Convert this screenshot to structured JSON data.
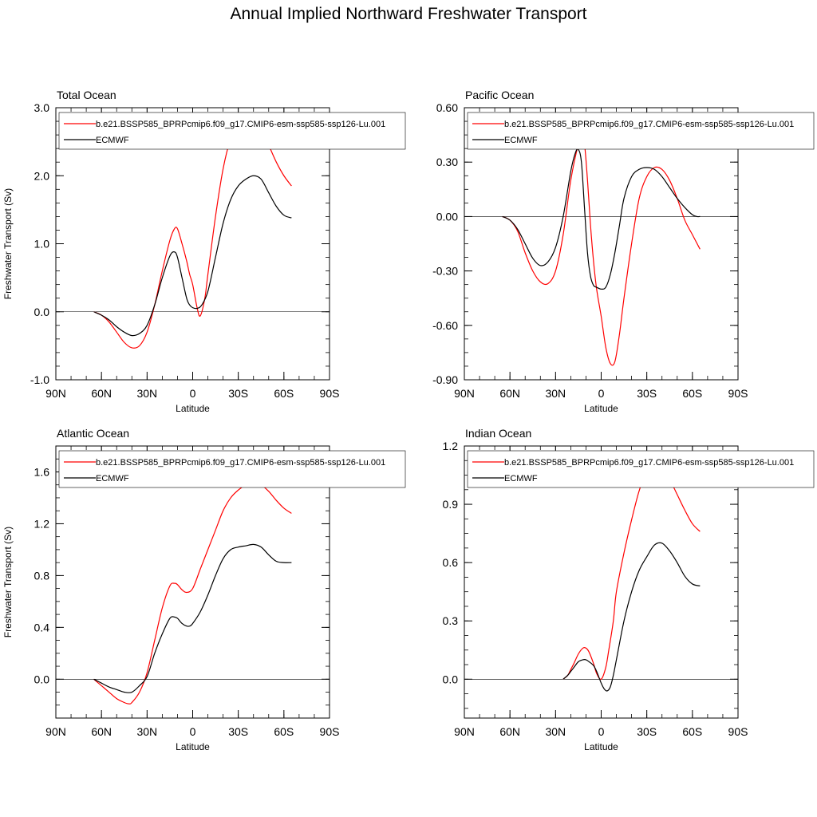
{
  "title": "Annual Implied Northward Freshwater Transport",
  "colors": {
    "model": "#ff0000",
    "obs": "#000000"
  },
  "chart_data": [
    {
      "type": "line",
      "title": "Total Ocean",
      "xlabel": "Latitude",
      "ylabel": "Freshwater Transport (Sv)",
      "xlim": [
        90,
        -90
      ],
      "ylim": [
        -1.0,
        3.0
      ],
      "xticks": [
        90,
        60,
        30,
        0,
        -30,
        -60,
        -90
      ],
      "xtick_labels": [
        "90N",
        "60N",
        "30N",
        "0",
        "30S",
        "60S",
        "90S"
      ],
      "yticks": [
        -1.0,
        0.0,
        1.0,
        2.0,
        3.0
      ],
      "ytick_labels": [
        "-1.0",
        "0.0",
        "1.0",
        "2.0",
        "3.0"
      ],
      "yminor": 0.2,
      "legend_position": "top",
      "series": [
        {
          "name": "b.e21.BSSP585_BPRPcmip6.f09_g17.CMIP6-esm-ssp585-ssp126-Lu.001",
          "color": "#ff0000",
          "x": [
            65,
            60,
            55,
            50,
            45,
            40,
            35,
            30,
            25,
            20,
            15,
            12,
            10,
            7,
            4,
            2,
            0,
            -3,
            -5,
            -8,
            -10,
            -15,
            -20,
            -25,
            -30,
            -35,
            -40,
            -45,
            -50,
            -55,
            -60,
            -65
          ],
          "y": [
            0.0,
            -0.05,
            -0.15,
            -0.3,
            -0.45,
            -0.53,
            -0.5,
            -0.3,
            0.1,
            0.6,
            1.05,
            1.22,
            1.22,
            1.0,
            0.75,
            0.55,
            0.4,
            0.05,
            -0.06,
            0.2,
            0.55,
            1.4,
            2.1,
            2.55,
            2.8,
            2.9,
            2.85,
            2.7,
            2.45,
            2.2,
            2.0,
            1.85
          ]
        },
        {
          "name": "ECMWF",
          "color": "#000000",
          "x": [
            65,
            60,
            55,
            50,
            45,
            40,
            35,
            30,
            25,
            20,
            15,
            12,
            10,
            7,
            4,
            2,
            0,
            -3,
            -6,
            -10,
            -15,
            -20,
            -25,
            -30,
            -35,
            -40,
            -45,
            -50,
            -55,
            -60,
            -65
          ],
          "y": [
            0.0,
            -0.05,
            -0.12,
            -0.22,
            -0.3,
            -0.35,
            -0.32,
            -0.2,
            0.1,
            0.5,
            0.82,
            0.88,
            0.8,
            0.5,
            0.2,
            0.1,
            0.06,
            0.05,
            0.1,
            0.3,
            0.8,
            1.3,
            1.65,
            1.85,
            1.95,
            2.0,
            1.95,
            1.75,
            1.55,
            1.42,
            1.38
          ]
        }
      ]
    },
    {
      "type": "line",
      "title": "Pacific Ocean",
      "xlabel": "Latitude",
      "ylabel": "",
      "xlim": [
        90,
        -90
      ],
      "ylim": [
        -0.9,
        0.6
      ],
      "xticks": [
        90,
        60,
        30,
        0,
        -30,
        -60,
        -90
      ],
      "xtick_labels": [
        "90N",
        "60N",
        "30N",
        "0",
        "30S",
        "60S",
        "90S"
      ],
      "yticks": [
        -0.9,
        -0.6,
        -0.3,
        0.0,
        0.3,
        0.6
      ],
      "ytick_labels": [
        "-0.90",
        "-0.60",
        "-0.30",
        "0.00",
        "0.30",
        "0.60"
      ],
      "yminor": 0.075,
      "legend_position": "top",
      "series": [
        {
          "name": "b.e21.BSSP585_BPRPcmip6.f09_g17.CMIP6-esm-ssp585-ssp126-Lu.001",
          "color": "#ff0000",
          "x": [
            65,
            60,
            55,
            50,
            45,
            40,
            35,
            30,
            25,
            20,
            15,
            13,
            11,
            9,
            7,
            5,
            3,
            0,
            -3,
            -6,
            -9,
            -12,
            -15,
            -20,
            -25,
            -30,
            -35,
            -40,
            -45,
            -50,
            -55,
            -60,
            -65
          ],
          "y": [
            0.0,
            -0.02,
            -0.08,
            -0.2,
            -0.3,
            -0.36,
            -0.37,
            -0.3,
            -0.1,
            0.2,
            0.4,
            0.43,
            0.4,
            0.2,
            -0.05,
            -0.25,
            -0.4,
            -0.55,
            -0.72,
            -0.81,
            -0.8,
            -0.65,
            -0.45,
            -0.15,
            0.1,
            0.22,
            0.27,
            0.26,
            0.2,
            0.1,
            -0.02,
            -0.1,
            -0.18
          ]
        },
        {
          "name": "ECMWF",
          "color": "#000000",
          "x": [
            65,
            60,
            55,
            50,
            45,
            40,
            35,
            30,
            25,
            20,
            17,
            15,
            13,
            11,
            9,
            7,
            5,
            3,
            0,
            -3,
            -6,
            -9,
            -12,
            -15,
            -20,
            -25,
            -30,
            -35,
            -40,
            -45,
            -50,
            -55,
            -60,
            -63,
            -65
          ],
          "y": [
            0.0,
            -0.02,
            -0.07,
            -0.15,
            -0.23,
            -0.27,
            -0.25,
            -0.17,
            0.0,
            0.25,
            0.35,
            0.37,
            0.3,
            0.05,
            -0.2,
            -0.33,
            -0.38,
            -0.39,
            -0.4,
            -0.39,
            -0.32,
            -0.2,
            -0.05,
            0.1,
            0.22,
            0.26,
            0.27,
            0.26,
            0.22,
            0.16,
            0.1,
            0.05,
            0.01,
            0.0,
            0.0
          ]
        }
      ]
    },
    {
      "type": "line",
      "title": "Atlantic Ocean",
      "xlabel": "Latitude",
      "ylabel": "Freshwater Transport (Sv)",
      "xlim": [
        90,
        -90
      ],
      "ylim": [
        -0.3,
        1.8
      ],
      "xticks": [
        90,
        60,
        30,
        0,
        -30,
        -60,
        -90
      ],
      "xtick_labels": [
        "90N",
        "60N",
        "30N",
        "0",
        "30S",
        "60S",
        "90S"
      ],
      "yticks": [
        0.0,
        0.4,
        0.8,
        1.2,
        1.6
      ],
      "ytick_labels": [
        "0.0",
        "0.4",
        "0.8",
        "1.2",
        "1.6"
      ],
      "yminor": 0.1,
      "legend_position": "top",
      "series": [
        {
          "name": "b.e21.BSSP585_BPRPcmip6.f09_g17.CMIP6-esm-ssp585-ssp126-Lu.001",
          "color": "#ff0000",
          "x": [
            65,
            60,
            55,
            50,
            45,
            42,
            40,
            35,
            30,
            25,
            20,
            15,
            12,
            10,
            7,
            4,
            0,
            -5,
            -10,
            -15,
            -20,
            -25,
            -30,
            -35,
            -40,
            -45,
            -50,
            -55,
            -60,
            -65
          ],
          "y": [
            0.0,
            -0.05,
            -0.1,
            -0.15,
            -0.18,
            -0.19,
            -0.18,
            -0.1,
            0.05,
            0.3,
            0.55,
            0.72,
            0.74,
            0.73,
            0.69,
            0.67,
            0.7,
            0.85,
            1.0,
            1.15,
            1.3,
            1.4,
            1.46,
            1.5,
            1.52,
            1.5,
            1.45,
            1.38,
            1.32,
            1.28
          ]
        },
        {
          "name": "ECMWF",
          "color": "#000000",
          "x": [
            65,
            60,
            55,
            50,
            45,
            40,
            35,
            30,
            25,
            20,
            15,
            12,
            10,
            7,
            4,
            2,
            0,
            -5,
            -10,
            -15,
            -20,
            -25,
            -30,
            -35,
            -40,
            -45,
            -50,
            -55,
            -60,
            -65
          ],
          "y": [
            0.0,
            -0.03,
            -0.06,
            -0.08,
            -0.1,
            -0.1,
            -0.05,
            0.02,
            0.2,
            0.35,
            0.47,
            0.48,
            0.47,
            0.43,
            0.41,
            0.41,
            0.43,
            0.52,
            0.65,
            0.8,
            0.93,
            1.0,
            1.02,
            1.03,
            1.04,
            1.02,
            0.96,
            0.91,
            0.9,
            0.9
          ]
        }
      ]
    },
    {
      "type": "line",
      "title": "Indian Ocean",
      "xlabel": "Latitude",
      "ylabel": "",
      "xlim": [
        90,
        -90
      ],
      "ylim": [
        -0.2,
        1.2
      ],
      "xticks": [
        90,
        60,
        30,
        0,
        -30,
        -60,
        -90
      ],
      "xtick_labels": [
        "90N",
        "60N",
        "30N",
        "0",
        "30S",
        "60S",
        "90S"
      ],
      "yticks": [
        0.0,
        0.3,
        0.6,
        0.9,
        1.2
      ],
      "ytick_labels": [
        "0.0",
        "0.3",
        "0.6",
        "0.9",
        "1.2"
      ],
      "yminor": 0.075,
      "legend_position": "top",
      "series": [
        {
          "name": "b.e21.BSSP585_BPRPcmip6.f09_g17.CMIP6-esm-ssp585-ssp126-Lu.001",
          "color": "#ff0000",
          "x": [
            25,
            22,
            20,
            18,
            15,
            12,
            10,
            8,
            5,
            3,
            0,
            -3,
            -5,
            -8,
            -10,
            -15,
            -20,
            -25,
            -30,
            -35,
            -40,
            -45,
            -50,
            -55,
            -60,
            -65
          ],
          "y": [
            0.0,
            0.02,
            0.05,
            0.08,
            0.13,
            0.16,
            0.16,
            0.14,
            0.08,
            0.03,
            0.0,
            0.06,
            0.15,
            0.3,
            0.45,
            0.65,
            0.82,
            0.97,
            1.07,
            1.11,
            1.1,
            1.03,
            0.95,
            0.87,
            0.8,
            0.76
          ]
        },
        {
          "name": "ECMWF",
          "color": "#000000",
          "x": [
            25,
            22,
            20,
            18,
            15,
            12,
            10,
            8,
            5,
            3,
            0,
            -2,
            -4,
            -6,
            -8,
            -10,
            -15,
            -20,
            -25,
            -30,
            -35,
            -40,
            -45,
            -50,
            -55,
            -60,
            -65
          ],
          "y": [
            0.0,
            0.02,
            0.04,
            0.06,
            0.09,
            0.1,
            0.1,
            0.09,
            0.07,
            0.04,
            -0.02,
            -0.05,
            -0.06,
            -0.04,
            0.02,
            0.1,
            0.3,
            0.45,
            0.56,
            0.63,
            0.69,
            0.7,
            0.66,
            0.6,
            0.53,
            0.49,
            0.48
          ]
        }
      ]
    }
  ]
}
